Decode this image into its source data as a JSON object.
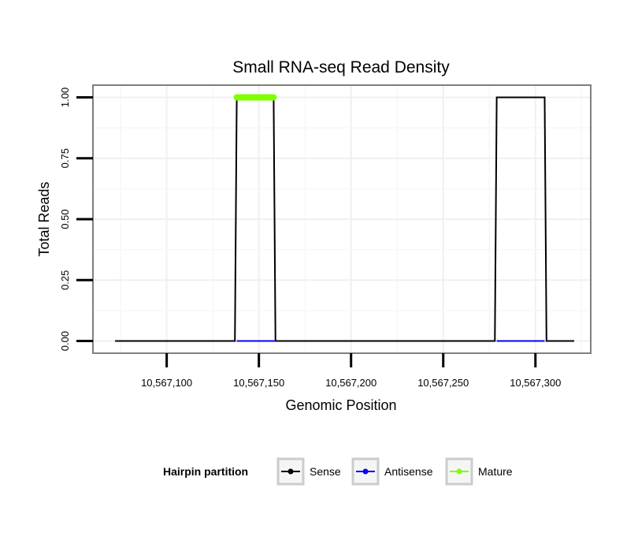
{
  "chart_data": {
    "type": "line",
    "title": "Small RNA-seq Read Density",
    "xlabel": "Genomic Position",
    "ylabel": "Total Reads",
    "xlim": [
      10567060,
      10567330
    ],
    "ylim": [
      -0.05,
      1.05
    ],
    "x_ticks": [
      10567100,
      10567150,
      10567200,
      10567250,
      10567300
    ],
    "x_tick_labels": [
      "10,567,100",
      "10,567,150",
      "10,567,200",
      "10,567,250",
      "10,567,300"
    ],
    "y_ticks": [
      0,
      0.25,
      0.5,
      0.75,
      1.0
    ],
    "y_tick_labels": [
      "0.00",
      "0.25",
      "0.50",
      "0.75",
      "1.00"
    ],
    "grid": true,
    "legend": {
      "title": "Hairpin partition",
      "position": "bottom",
      "entries": [
        {
          "label": "Sense",
          "color": "#000000"
        },
        {
          "label": "Antisense",
          "color": "#0000ff"
        },
        {
          "label": "Mature",
          "color": "#7fff00"
        }
      ]
    },
    "series": [
      {
        "name": "Sense",
        "color": "#000000",
        "x": [
          10567072,
          10567137,
          10567138,
          10567158,
          10567159,
          10567278,
          10567279,
          10567305,
          10567306,
          10567321
        ],
        "y": [
          0,
          0,
          1,
          1,
          0,
          0,
          1,
          1,
          0,
          0
        ]
      },
      {
        "name": "Antisense",
        "color": "#0000ff",
        "x": [
          10567138,
          10567159
        ],
        "y": [
          0,
          0
        ],
        "x2": [
          10567279,
          10567305
        ],
        "y2": [
          0,
          0
        ]
      },
      {
        "name": "Mature",
        "color": "#7fff00",
        "x": [
          10567138,
          10567158
        ],
        "y": [
          1,
          1
        ]
      }
    ]
  }
}
